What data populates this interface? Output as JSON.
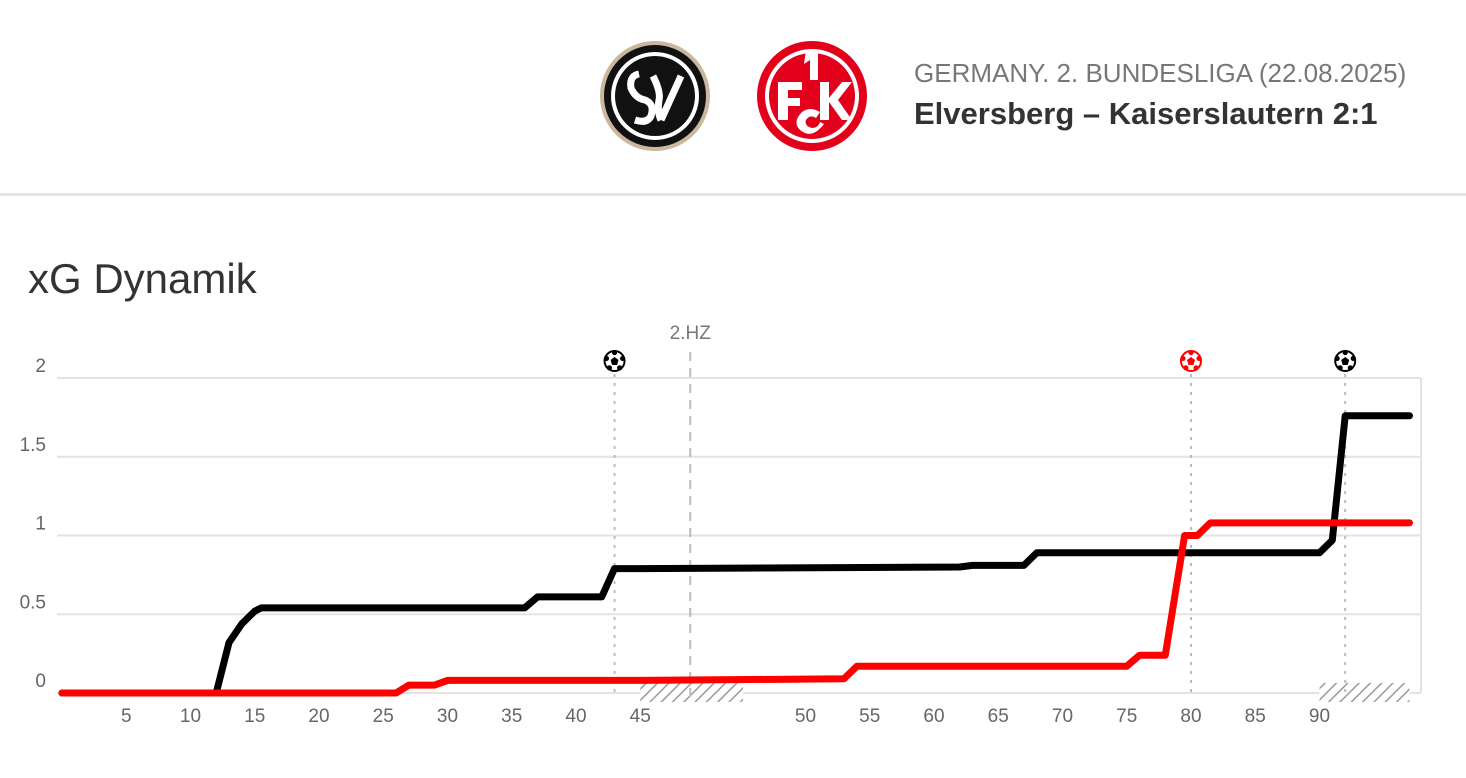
{
  "match": {
    "league": "GERMANY. 2. BUNDESLIGA (22.08.2025)",
    "title": "Elversberg – Kaiserslautern 2:1",
    "home_team_logo": "SVE crest (black/white)",
    "away_team_logo": "1. FCK crest (red/white)"
  },
  "chart_data": {
    "type": "line",
    "title": "xG Dynamik",
    "xlabel": "",
    "ylabel": "",
    "ylim": [
      0,
      2
    ],
    "yticks": [
      0,
      0.5,
      1,
      1.5,
      2
    ],
    "ytick_labels": [
      "0",
      "0.5",
      "1",
      "1.5",
      "2"
    ],
    "first_half_ticks": [
      5,
      10,
      15,
      20,
      25,
      30,
      35,
      40,
      45
    ],
    "second_half_ticks": [
      50,
      55,
      60,
      65,
      70,
      75,
      80,
      85,
      90
    ],
    "halftime_label": "2.HZ",
    "grid": true,
    "series": [
      {
        "color": "#000000",
        "points": [
          [
            0,
            0
          ],
          [
            12,
            0
          ],
          [
            13,
            0.32
          ],
          [
            14,
            0.44
          ],
          [
            15,
            0.52
          ],
          [
            15.5,
            0.54
          ],
          [
            36,
            0.54
          ],
          [
            37,
            0.61
          ],
          [
            42,
            0.61
          ],
          [
            43,
            0.79
          ],
          [
            45,
            0.79
          ],
          [
            62,
            0.8
          ],
          [
            63,
            0.81
          ],
          [
            67,
            0.81
          ],
          [
            68,
            0.89
          ],
          [
            90,
            0.89
          ],
          [
            91,
            0.97
          ],
          [
            92,
            1.76
          ],
          [
            97,
            1.76
          ]
        ]
      },
      {
        "color": "#ff0000",
        "points": [
          [
            0,
            0
          ],
          [
            26,
            0
          ],
          [
            27,
            0.05
          ],
          [
            29,
            0.05
          ],
          [
            30,
            0.08
          ],
          [
            45,
            0.08
          ],
          [
            53,
            0.09
          ],
          [
            54,
            0.17
          ],
          [
            75,
            0.17
          ],
          [
            76,
            0.24
          ],
          [
            78,
            0.24
          ],
          [
            79.5,
            1.0
          ],
          [
            80.5,
            1.0
          ],
          [
            81.5,
            1.08
          ],
          [
            97,
            1.08
          ]
        ]
      }
    ],
    "goals": [
      {
        "half": 1,
        "minute": 43,
        "color": "#000000"
      },
      {
        "half": 2,
        "minute": 80,
        "color": "#ff0000"
      },
      {
        "half": 2,
        "minute": 92,
        "color": "#000000"
      }
    ],
    "stoppage": [
      {
        "half": 1,
        "from": 45,
        "to": 53
      },
      {
        "half": 2,
        "from": 90,
        "to": 97
      }
    ]
  }
}
